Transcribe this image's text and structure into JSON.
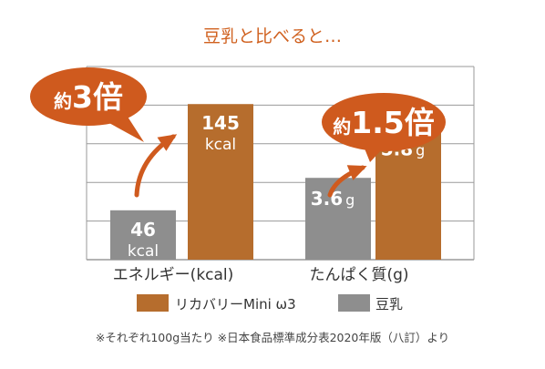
{
  "colors": {
    "rikabari": "#B66D2D",
    "tonyu": "#8E8E8E",
    "callout": "#CF5A1E",
    "title": "#D0611F",
    "grid": "#9A9A9A",
    "text": "#333333"
  },
  "chart_data": {
    "type": "bar",
    "title": "豆乳と比べると…",
    "categories": [
      "エネルギー(kcal)",
      "たんぱく質(g)"
    ],
    "series": [
      {
        "name": "豆乳",
        "values": [
          46,
          3.6
        ],
        "value_labels": [
          [
            "46",
            "kcal"
          ],
          [
            "3.6",
            "g"
          ]
        ]
      },
      {
        "name": "リカバリーMini ω3",
        "values": [
          145,
          5.8
        ],
        "value_labels": [
          [
            "145",
            "kcal"
          ],
          [
            "5.8",
            "g"
          ]
        ]
      }
    ],
    "group_ylim": [
      [
        0,
        180
      ],
      [
        0,
        8.5
      ]
    ],
    "grid": true,
    "legend_position": "bottom",
    "callouts": [
      {
        "prefix": "約",
        "value": "3倍"
      },
      {
        "prefix": "約",
        "value": "1.5倍"
      }
    ],
    "footnote": "※それぞれ100g当たり ※日本食品標準成分表2020年版（八訂）より"
  }
}
